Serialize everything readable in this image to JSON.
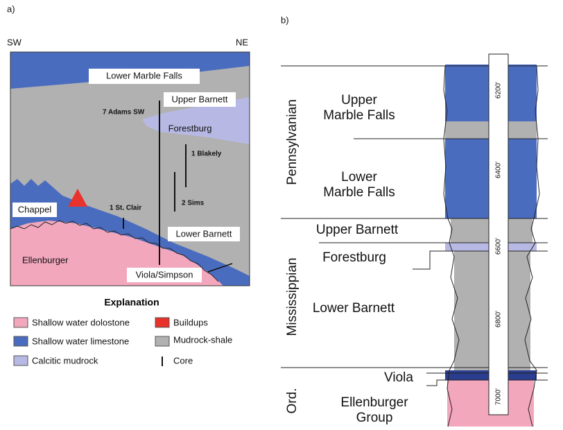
{
  "panel_a": {
    "label": "a)",
    "sw": "SW",
    "ne": "NE",
    "units": {
      "lower_marble_falls": "Lower Marble Falls",
      "upper_barnett": "Upper Barnett",
      "forestburg": "Forestburg",
      "chappel": "Chappel",
      "lower_barnett": "Lower Barnett",
      "ellenburger": "Ellenburger",
      "viola_simpson": "Viola/Simpson"
    },
    "wells": [
      "7 Adams SW",
      "1 Blakely",
      "2 Sims",
      "1 St. Clair"
    ],
    "explanation": {
      "title": "Explanation",
      "items": [
        "Shallow water dolostone",
        "Buildups",
        "Shallow water limestone",
        "Mudrock-shale",
        "Calcitic mudrock",
        "Core"
      ]
    }
  },
  "panel_b": {
    "label": "b)",
    "periods": [
      "Pennsylvanian",
      "Mississippian",
      "Ord."
    ],
    "units": [
      [
        "Upper",
        "Marble Falls"
      ],
      [
        "Lower",
        "Marble Falls"
      ],
      [
        "Upper Barnett"
      ],
      [
        "Forestburg"
      ],
      [
        "Lower Barnett"
      ],
      [
        "Viola"
      ],
      [
        "Ellenburger",
        "Group"
      ]
    ],
    "depths": [
      "6200'",
      "6400'",
      "6600'",
      "6800'",
      "7000'"
    ]
  }
}
